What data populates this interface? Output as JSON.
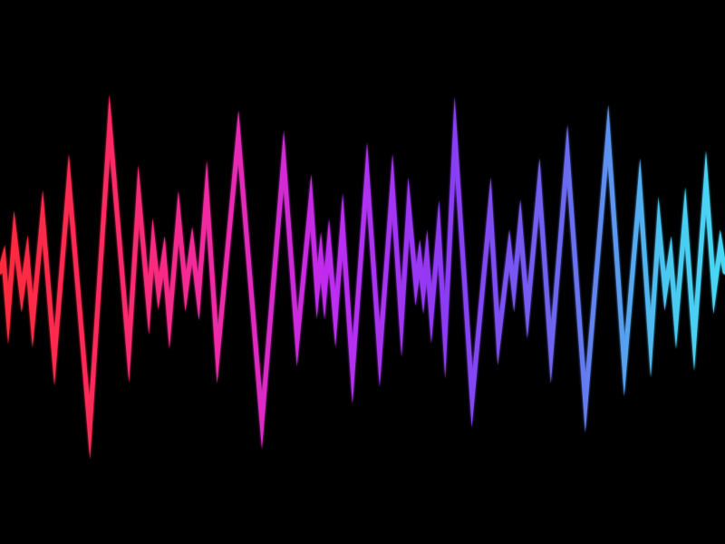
{
  "scene": {
    "background_color": "#000000",
    "subject": "sound-wave",
    "gradient_colors": [
      "#ff2a3c",
      "#ff2a72",
      "#f02ca8",
      "#c02cf0",
      "#8a3cf5",
      "#6a6af0",
      "#4ac8f0",
      "#4ad8f5"
    ]
  }
}
